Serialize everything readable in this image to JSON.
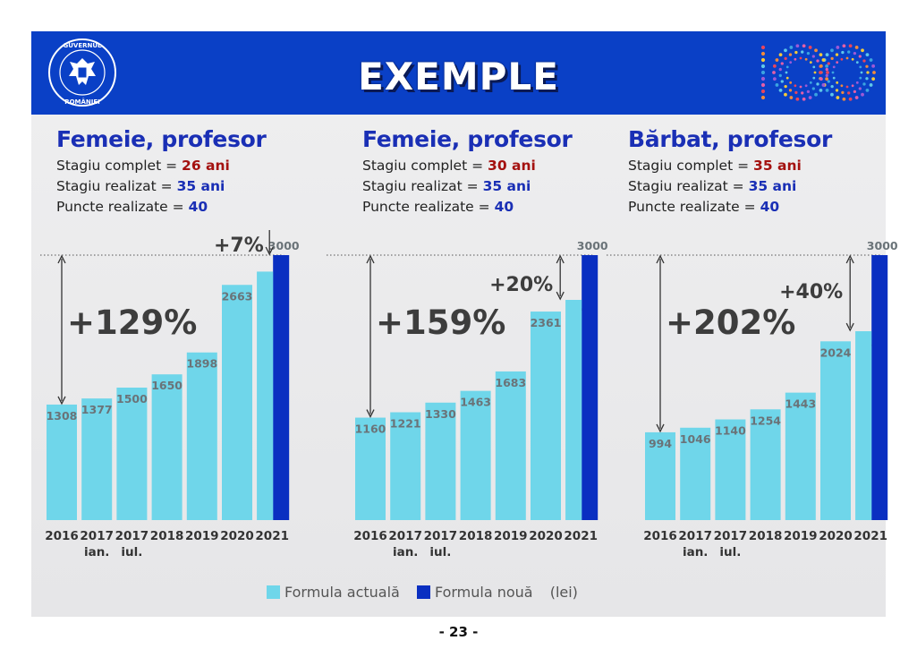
{
  "header": {
    "title": "EXEMPLE",
    "logo_left_text": "GUVERNUL ROMÂNIEI",
    "logo_right_text": "100"
  },
  "colors": {
    "banner": "#0a40c6",
    "formula_actuala": "#6fd6ea",
    "formula_noua": "#0a2fc1",
    "title_blue": "#1a2fb5",
    "value_red": "#a4110f"
  },
  "cases": [
    {
      "title": "Femeie, profesor",
      "stagiu_complet_label": "Stagiu complet =",
      "stagiu_complet_value": "26 ani",
      "stagiu_realizat_label": "Stagiu realizat =",
      "stagiu_realizat_value": "35 ani",
      "puncte_label": "Puncte realizate =",
      "puncte_value": "40"
    },
    {
      "title": "Femeie, profesor",
      "stagiu_complet_label": "Stagiu complet =",
      "stagiu_complet_value": "30 ani",
      "stagiu_realizat_label": "Stagiu realizat =",
      "stagiu_realizat_value": "35 ani",
      "puncte_label": "Puncte realizate =",
      "puncte_value": "40"
    },
    {
      "title": "Bărbat, profesor",
      "stagiu_complet_label": "Stagiu complet =",
      "stagiu_complet_value": "35 ani",
      "stagiu_realizat_label": "Stagiu realizat =",
      "stagiu_realizat_value": "35 ani",
      "puncte_label": "Puncte realizate =",
      "puncte_value": "40"
    }
  ],
  "legend": {
    "actuala": "Formula actuală",
    "noua": "Formula nouă",
    "unit": "(lei)"
  },
  "page_number": "- 23 -",
  "chart_data": [
    {
      "type": "bar",
      "categories": [
        "2016",
        "2017 ian.",
        "2017 iul.",
        "2018",
        "2019",
        "2020",
        "2021"
      ],
      "series": [
        {
          "name": "Formula actuală",
          "values": [
            1308,
            1377,
            1500,
            1650,
            1898,
            2663,
            2813
          ]
        },
        {
          "name": "Formula nouă",
          "values": [
            null,
            null,
            null,
            null,
            null,
            null,
            3000
          ]
        }
      ],
      "annotations": {
        "total_increase": "+129%",
        "new_formula_increase": "+7%"
      },
      "ylim": [
        0,
        3000
      ]
    },
    {
      "type": "bar",
      "categories": [
        "2016",
        "2017 ian.",
        "2017 iul.",
        "2018",
        "2019",
        "2020",
        "2021"
      ],
      "series": [
        {
          "name": "Formula actuală",
          "values": [
            1160,
            1221,
            1330,
            1463,
            1683,
            2361,
            2493
          ]
        },
        {
          "name": "Formula nouă",
          "values": [
            null,
            null,
            null,
            null,
            null,
            null,
            3000
          ]
        }
      ],
      "annotations": {
        "total_increase": "+159%",
        "new_formula_increase": "+20%"
      },
      "ylim": [
        0,
        3000
      ]
    },
    {
      "type": "bar",
      "categories": [
        "2016",
        "2017 ian.",
        "2017 iul.",
        "2018",
        "2019",
        "2020",
        "2021"
      ],
      "series": [
        {
          "name": "Formula actuală",
          "values": [
            994,
            1046,
            1140,
            1254,
            1443,
            2024,
            2138
          ]
        },
        {
          "name": "Formula nouă",
          "values": [
            null,
            null,
            null,
            null,
            null,
            null,
            3000
          ]
        }
      ],
      "annotations": {
        "total_increase": "+202%",
        "new_formula_increase": "+40%"
      },
      "ylim": [
        0,
        3000
      ]
    }
  ]
}
